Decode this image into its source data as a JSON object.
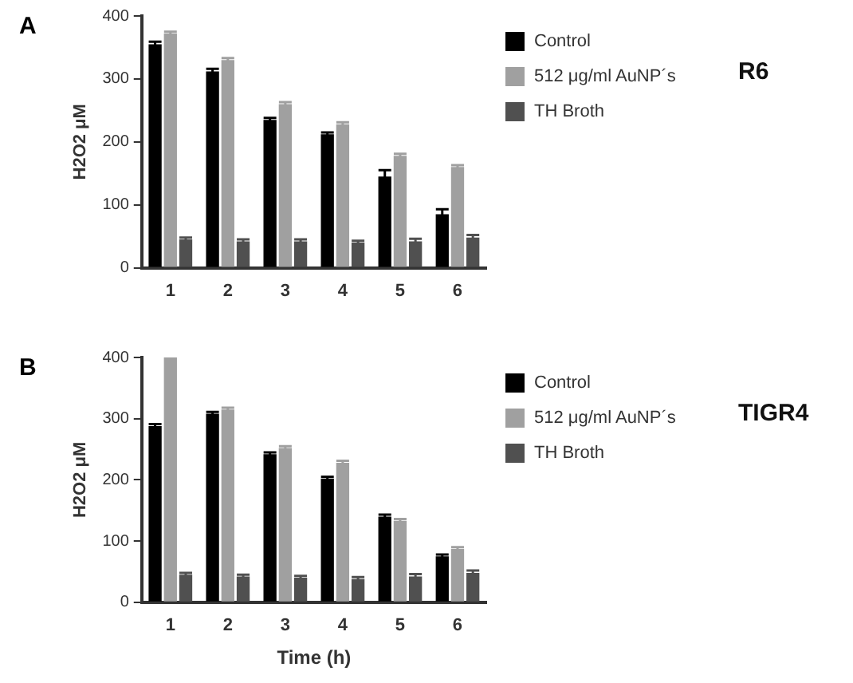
{
  "chart_data": [
    {
      "type": "bar",
      "annotations": [
        "A",
        "R6"
      ],
      "ylabel": "H2O2 μM",
      "categories": [
        "1",
        "2",
        "3",
        "4",
        "5",
        "6"
      ],
      "series": [
        {
          "name": "Control",
          "color": "#000000",
          "values": [
            355,
            312,
            235,
            212,
            145,
            85
          ],
          "errors": [
            4,
            4,
            3,
            3,
            10,
            8
          ]
        },
        {
          "name": "512 μg/ml AuNP´s",
          "color": "#a0a0a0",
          "values": [
            372,
            330,
            260,
            228,
            178,
            160
          ],
          "errors": [
            3,
            3,
            3,
            3,
            3,
            3
          ]
        },
        {
          "name": "TH Broth",
          "color": "#505050",
          "values": [
            45,
            42,
            42,
            40,
            42,
            48
          ],
          "errors": [
            3,
            3,
            3,
            3,
            4,
            4
          ]
        }
      ],
      "ylim": [
        0,
        400
      ],
      "yticks": [
        0,
        100,
        200,
        300,
        400
      ],
      "grid": false,
      "legend": "top right"
    },
    {
      "type": "bar",
      "annotations": [
        "B",
        "TIGR4"
      ],
      "xlabel": "Time (h)",
      "ylabel": "H2O2 μM",
      "categories": [
        "1",
        "2",
        "3",
        "4",
        "5",
        "6"
      ],
      "series": [
        {
          "name": "Control",
          "color": "#000000",
          "values": [
            288,
            308,
            242,
            202,
            140,
            75
          ],
          "errors": [
            3,
            3,
            3,
            3,
            3,
            3
          ]
        },
        {
          "name": "512 μg/ml AuNP´s",
          "color": "#a0a0a0",
          "values": [
            400,
            315,
            252,
            228,
            133,
            87
          ],
          "errors": [
            null,
            3,
            3,
            3,
            3,
            3
          ]
        },
        {
          "name": "TH Broth",
          "color": "#505050",
          "values": [
            45,
            42,
            40,
            38,
            42,
            48
          ],
          "errors": [
            3,
            3,
            3,
            3,
            4,
            4
          ]
        }
      ],
      "ylim": [
        0,
        400
      ],
      "yticks": [
        0,
        100,
        200,
        300,
        400
      ],
      "grid": false,
      "legend": "top right"
    }
  ]
}
